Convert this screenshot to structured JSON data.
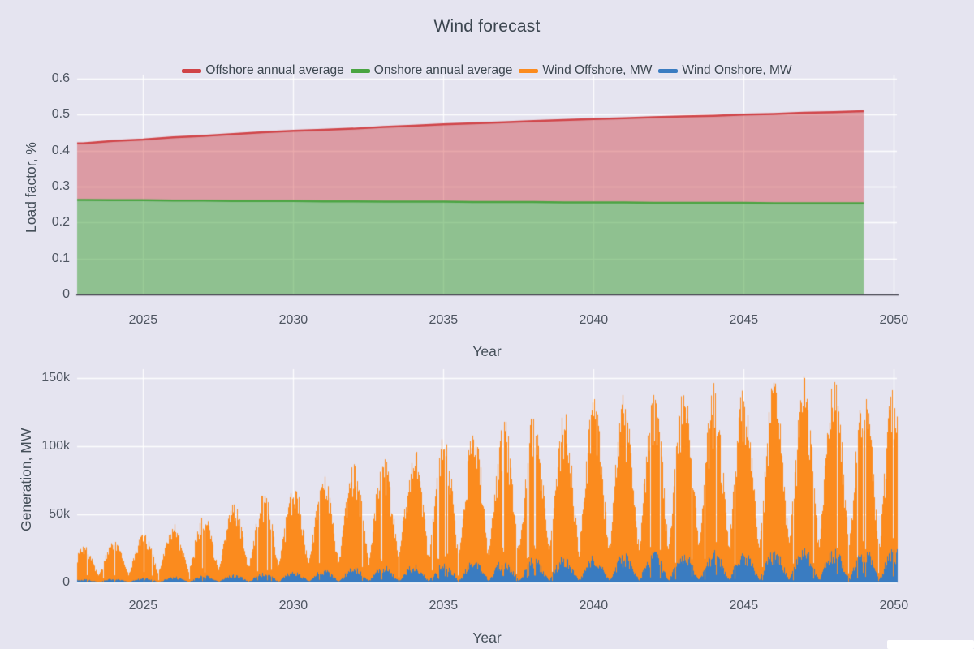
{
  "title": "Wind forecast",
  "colors": {
    "background": "#e5e4f0",
    "grid": "#ffffff",
    "zeroline": "#3f3f4a",
    "offshore_line": "#d04347",
    "offshore_fill": "rgba(208,67,71,0.45)",
    "onshore_line": "#49a441",
    "onshore_fill": "rgba(73,164,65,0.55)",
    "wind_offshore": "#fb8b1e",
    "wind_onshore": "#3a7cc1"
  },
  "legend": {
    "items": [
      {
        "label": "Offshore annual average",
        "color": "#d04347"
      },
      {
        "label": "Onshore annual average",
        "color": "#49a441"
      },
      {
        "label": "Wind Offshore, MW",
        "color": "#fb8b1e"
      },
      {
        "label": "Wind Onshore, MW",
        "color": "#3a7cc1"
      }
    ]
  },
  "chart_data": [
    {
      "type": "area",
      "name": "load-factor-forecast",
      "xlabel": "Year",
      "ylabel": "Load factor, %",
      "xlim": [
        2022.8,
        2050.1
      ],
      "ylim": [
        0,
        0.6
      ],
      "xticks": [
        2025,
        2030,
        2035,
        2040,
        2045,
        2050
      ],
      "yticks": [
        0,
        0.1,
        0.2,
        0.3,
        0.4,
        0.5,
        0.6
      ],
      "ytick_labels": [
        "0",
        "0.1",
        "0.2",
        "0.3",
        "0.4",
        "0.5",
        "0.6"
      ],
      "x_years": [
        2023,
        2024,
        2025,
        2026,
        2027,
        2028,
        2029,
        2030,
        2031,
        2032,
        2033,
        2034,
        2035,
        2036,
        2037,
        2038,
        2039,
        2040,
        2041,
        2042,
        2043,
        2044,
        2045,
        2046,
        2047,
        2048,
        2049
      ],
      "series": [
        {
          "name": "Offshore annual average",
          "values": [
            0.42,
            0.427,
            0.431,
            0.437,
            0.441,
            0.446,
            0.451,
            0.455,
            0.458,
            0.461,
            0.466,
            0.469,
            0.473,
            0.476,
            0.479,
            0.482,
            0.485,
            0.488,
            0.49,
            0.493,
            0.495,
            0.497,
            0.5,
            0.502,
            0.505,
            0.507,
            0.51
          ]
        },
        {
          "name": "Onshore annual average",
          "values": [
            0.263,
            0.262,
            0.262,
            0.261,
            0.261,
            0.26,
            0.26,
            0.26,
            0.259,
            0.259,
            0.258,
            0.258,
            0.258,
            0.257,
            0.257,
            0.257,
            0.256,
            0.256,
            0.256,
            0.255,
            0.255,
            0.255,
            0.255,
            0.254,
            0.254,
            0.254,
            0.254
          ]
        }
      ],
      "legend_position": "top-center",
      "grid": true
    },
    {
      "type": "area",
      "name": "generation-forecast",
      "xlabel": "Year",
      "ylabel": "Generation, MW",
      "xlim": [
        2022.8,
        2050.1
      ],
      "ylim": [
        0,
        156000
      ],
      "xticks": [
        2025,
        2030,
        2035,
        2040,
        2045,
        2050
      ],
      "yticks": [
        0,
        50000,
        100000,
        150000
      ],
      "ytick_labels": [
        "0",
        "50k",
        "100k",
        "150k"
      ],
      "pattern": "high-frequency spiky hourly series; seasonal winter peaks near year boundaries, summer troughs around 25% of annual peak, occasional deep drops",
      "x_years": [
        2023,
        2024,
        2025,
        2026,
        2027,
        2028,
        2029,
        2030,
        2031,
        2032,
        2033,
        2034,
        2035,
        2036,
        2037,
        2038,
        2039,
        2040,
        2041,
        2042,
        2043,
        2044,
        2045,
        2046,
        2047,
        2048,
        2049,
        2050
      ],
      "series": [
        {
          "name": "Wind Offshore, MW",
          "annual_peak_mw": [
            27000,
            31000,
            36000,
            43000,
            50000,
            58000,
            66000,
            73000,
            80000,
            87000,
            95000,
            102000,
            109000,
            115000,
            121000,
            126000,
            131000,
            135000,
            139000,
            142000,
            145000,
            147000,
            149000,
            150000,
            151000,
            151000,
            152000,
            152000
          ]
        },
        {
          "name": "Wind Onshore, MW",
          "annual_peak_mw": [
            2500,
            3000,
            3500,
            4500,
            5500,
            6500,
            8000,
            9000,
            10000,
            11500,
            13000,
            14000,
            15500,
            17000,
            18000,
            19000,
            20000,
            21000,
            22000,
            23000,
            24000,
            24500,
            25000,
            25500,
            26000,
            26500,
            27000,
            27000
          ]
        }
      ],
      "grid": true
    }
  ]
}
